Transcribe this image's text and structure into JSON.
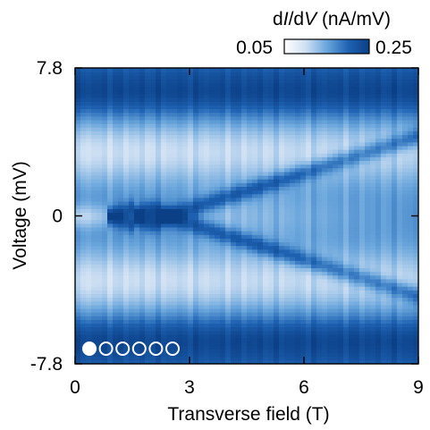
{
  "chart_data": {
    "type": "heatmap",
    "title": "",
    "xlabel": "Transverse field (T)",
    "ylabel": "Voltage (mV)",
    "xlim": [
      0,
      9
    ],
    "ylim": [
      -7.8,
      7.8
    ],
    "x_ticks": [
      {
        "value": 0,
        "label": "0"
      },
      {
        "value": 3,
        "label": "3"
      },
      {
        "value": 6,
        "label": "6"
      },
      {
        "value": 9,
        "label": "9"
      }
    ],
    "y_ticks": [
      {
        "value": 7.8,
        "label": "7.8"
      },
      {
        "value": 0,
        "label": "0"
      },
      {
        "value": -7.8,
        "label": "-7.8"
      }
    ],
    "colorbar": {
      "label_prefix": "d",
      "label_i": "I",
      "label_mid": "/d",
      "label_v": "V",
      "label_units": " (nA/mV)",
      "min": 0.05,
      "max": 0.25,
      "min_label": "0.05",
      "max_label": "0.25",
      "colors": [
        "#ffffff",
        "#cfe0f3",
        "#6aa6dc",
        "#1f63b3",
        "#0b3f86"
      ]
    },
    "features": {
      "zero_bias_peak_bright_until_field_T": 0.9,
      "zero_bias_crossing_fields_T": [
        1.6,
        2.4
      ],
      "splitting_mV_at_9T": 4.2,
      "coherence_peak_voltage_mV": 6.6,
      "conductance_background": 0.17,
      "conductance_coherence_peak": 0.24,
      "conductance_subgap_min": 0.1,
      "conductance_zero_bias_peak": 0.06
    },
    "marker": {
      "filled_count": 1,
      "total_count": 6,
      "color": "#ffffff"
    }
  }
}
